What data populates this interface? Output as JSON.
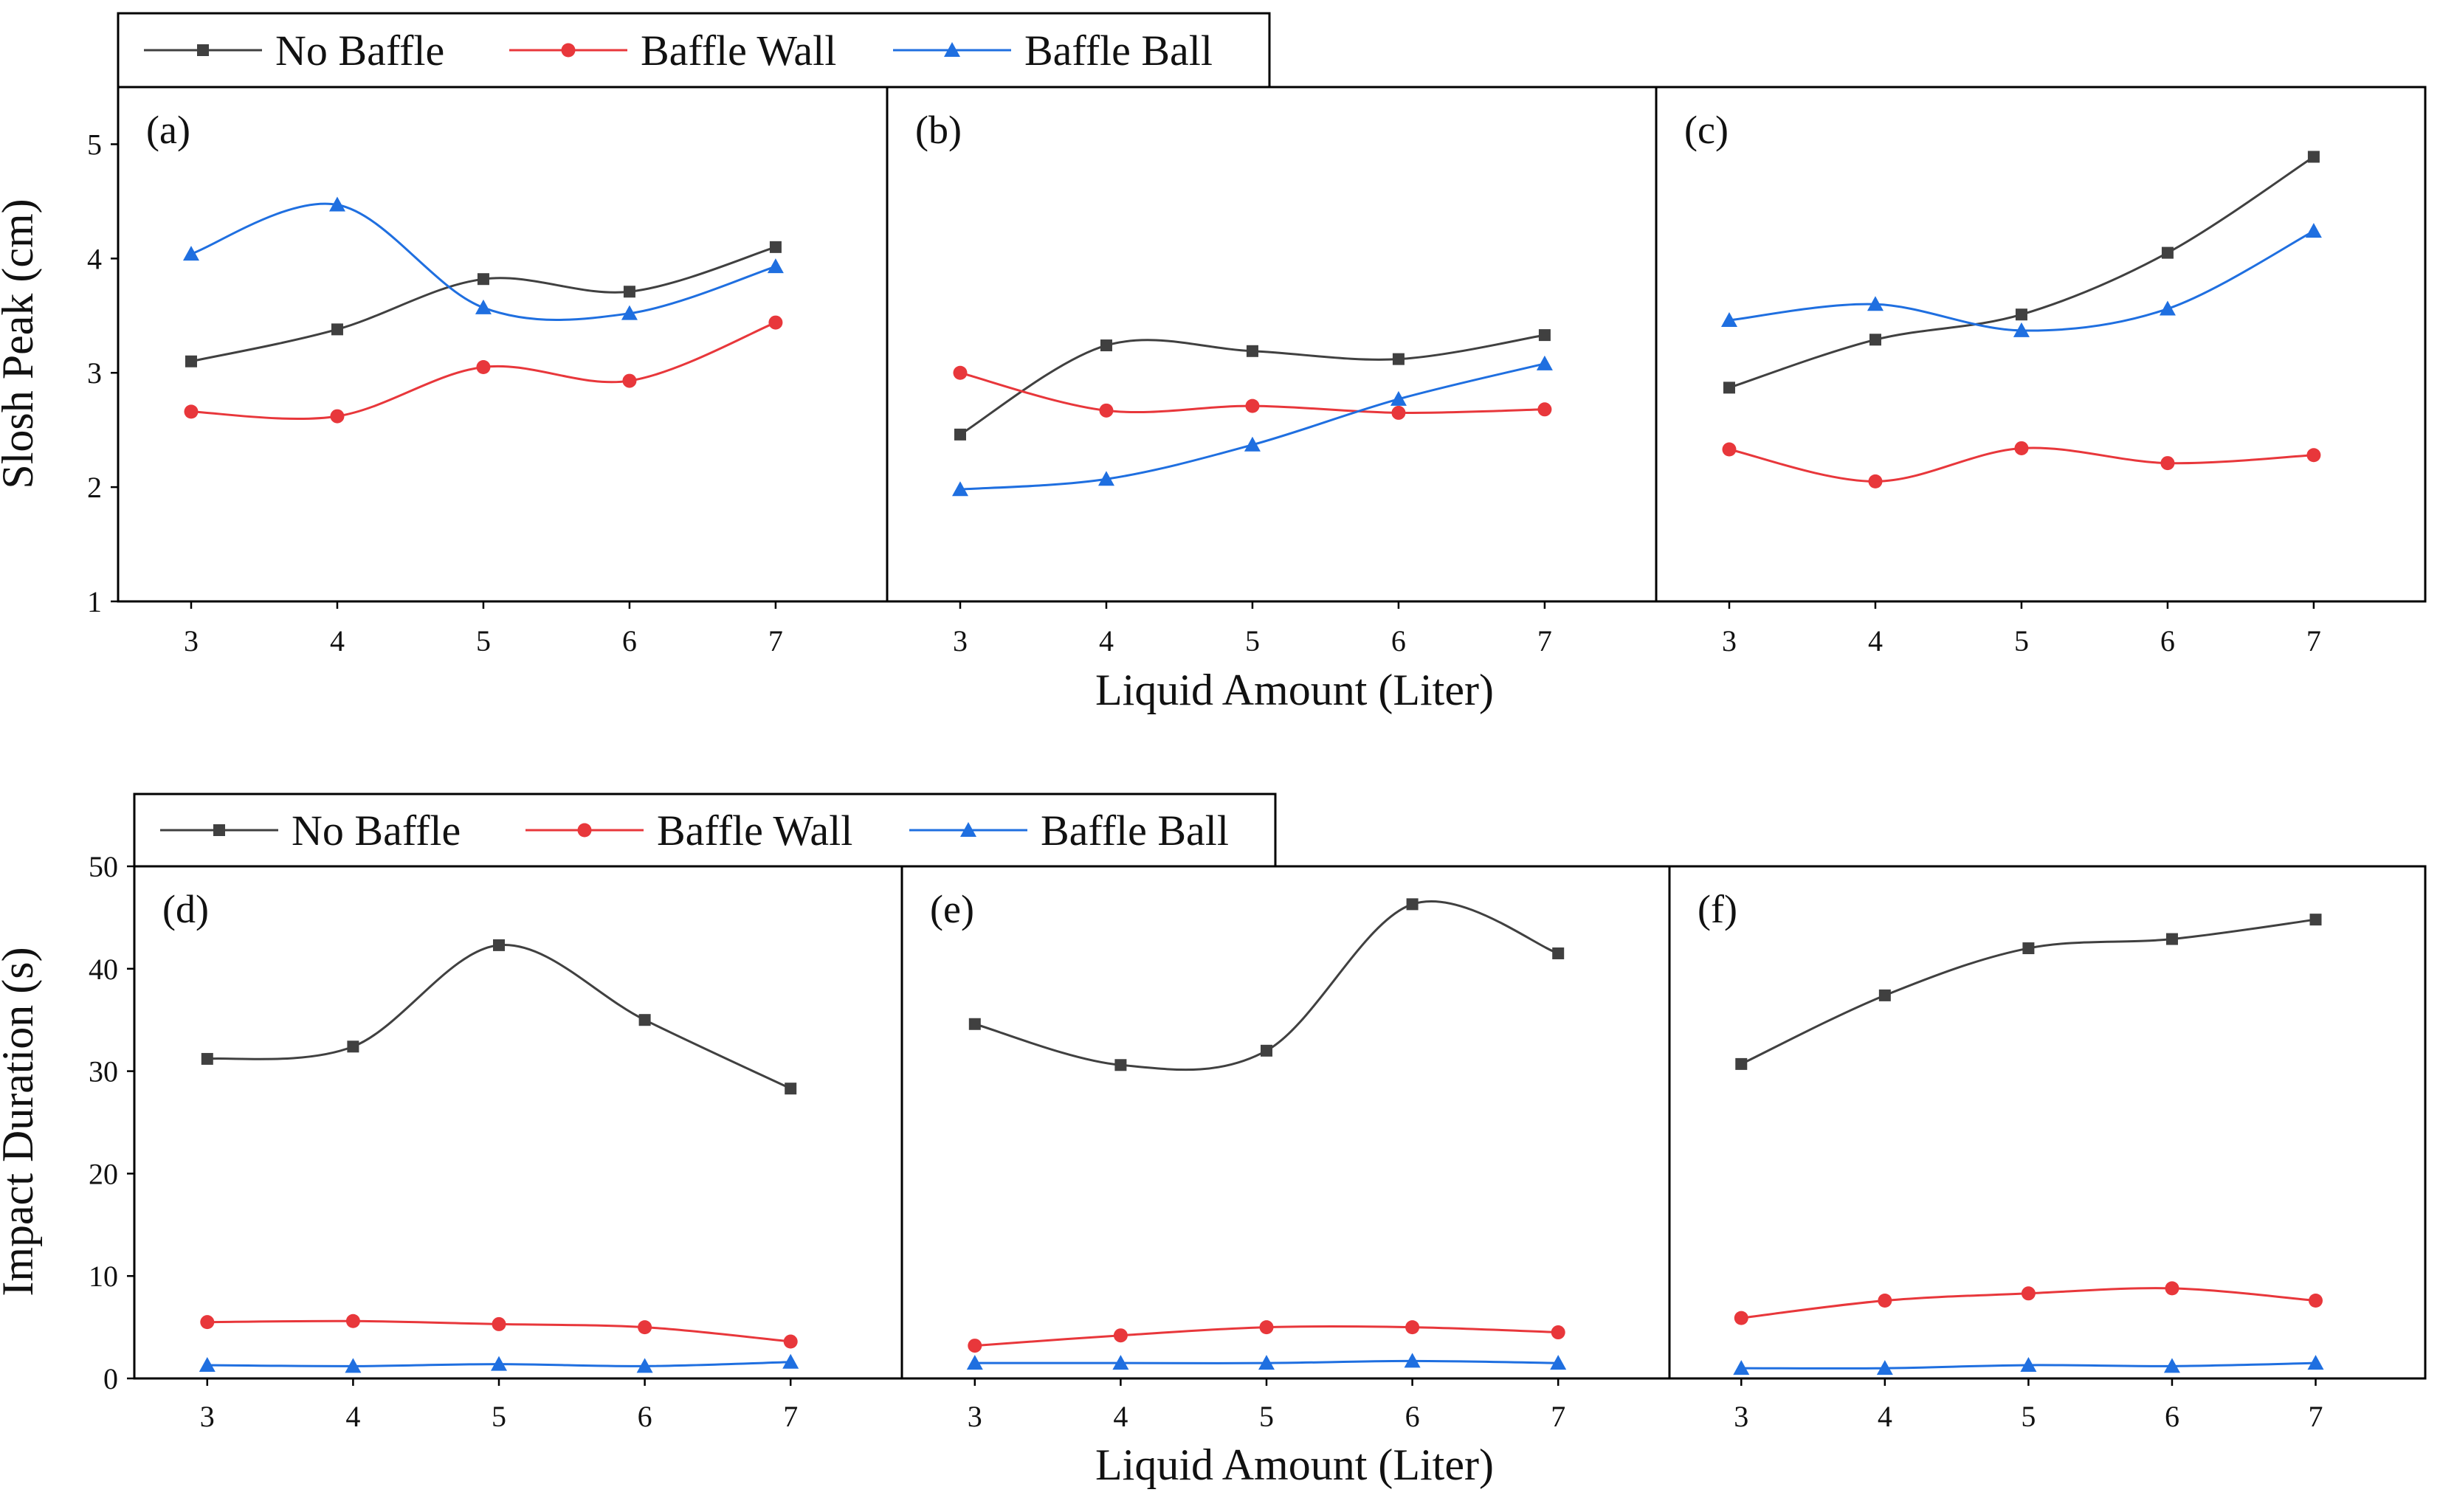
{
  "colors": {
    "no_baffle": "#404040",
    "baffle_wall": "#e8373b",
    "baffle_ball": "#1f6fe0"
  },
  "legend": {
    "no_baffle": "No Baffle",
    "baffle_wall": "Baffle Wall",
    "baffle_ball": "Baffle Ball"
  },
  "chart_data": [
    {
      "type": "line",
      "row": "top",
      "title": "",
      "xlabel": "Liquid Amount (Liter)",
      "ylabel": "Slosh Peak (cm)",
      "ylim": [
        1,
        5.5
      ],
      "yticks": [
        1,
        2,
        3,
        4,
        5
      ],
      "categories": [
        3,
        4,
        5,
        6,
        7
      ],
      "legend_position": "top-left",
      "panels": [
        {
          "label": "(a)",
          "series": [
            {
              "name": "No Baffle",
              "values": [
                3.1,
                3.38,
                3.82,
                3.71,
                4.1
              ]
            },
            {
              "name": "Baffle Wall",
              "values": [
                2.66,
                2.62,
                3.05,
                2.93,
                3.44
              ]
            },
            {
              "name": "Baffle Ball",
              "values": [
                4.04,
                4.47,
                3.57,
                3.52,
                3.93
              ]
            }
          ]
        },
        {
          "label": "(b)",
          "series": [
            {
              "name": "No Baffle",
              "values": [
                2.46,
                3.24,
                3.19,
                3.12,
                3.33
              ]
            },
            {
              "name": "Baffle Wall",
              "values": [
                3.0,
                2.67,
                2.71,
                2.65,
                2.68
              ]
            },
            {
              "name": "Baffle Ball",
              "values": [
                1.98,
                2.07,
                2.37,
                2.77,
                3.08
              ]
            }
          ]
        },
        {
          "label": "(c)",
          "series": [
            {
              "name": "No Baffle",
              "values": [
                2.87,
                3.29,
                3.51,
                4.05,
                4.89
              ]
            },
            {
              "name": "Baffle Wall",
              "values": [
                2.33,
                2.05,
                2.34,
                2.21,
                2.28
              ]
            },
            {
              "name": "Baffle Ball",
              "values": [
                3.46,
                3.6,
                3.37,
                3.56,
                4.24
              ]
            }
          ]
        }
      ]
    },
    {
      "type": "line",
      "row": "bottom",
      "title": "",
      "xlabel": "Liquid Amount (Liter)",
      "ylabel": "Impact Duration (s)",
      "ylim": [
        0,
        50
      ],
      "yticks": [
        0,
        10,
        20,
        30,
        40,
        50
      ],
      "categories": [
        3,
        4,
        5,
        6,
        7
      ],
      "legend_position": "top-left",
      "panels": [
        {
          "label": "(d)",
          "series": [
            {
              "name": "No Baffle",
              "values": [
                31.2,
                32.4,
                42.3,
                35.0,
                28.3
              ]
            },
            {
              "name": "Baffle Wall",
              "values": [
                5.5,
                5.6,
                5.3,
                5.0,
                3.6
              ]
            },
            {
              "name": "Baffle Ball",
              "values": [
                1.3,
                1.2,
                1.4,
                1.2,
                1.6
              ]
            }
          ]
        },
        {
          "label": "(e)",
          "series": [
            {
              "name": "No Baffle",
              "values": [
                34.6,
                30.6,
                32.0,
                46.3,
                41.5
              ]
            },
            {
              "name": "Baffle Wall",
              "values": [
                3.2,
                4.2,
                5.0,
                5.0,
                4.5
              ]
            },
            {
              "name": "Baffle Ball",
              "values": [
                1.5,
                1.5,
                1.5,
                1.7,
                1.5
              ]
            }
          ]
        },
        {
          "label": "(f)",
          "series": [
            {
              "name": "No Baffle",
              "values": [
                30.7,
                37.4,
                42.0,
                42.9,
                44.8
              ]
            },
            {
              "name": "Baffle Wall",
              "values": [
                5.9,
                7.6,
                8.3,
                8.8,
                7.6
              ]
            },
            {
              "name": "Baffle Ball",
              "values": [
                1.0,
                1.0,
                1.3,
                1.2,
                1.5
              ]
            }
          ]
        }
      ]
    }
  ]
}
